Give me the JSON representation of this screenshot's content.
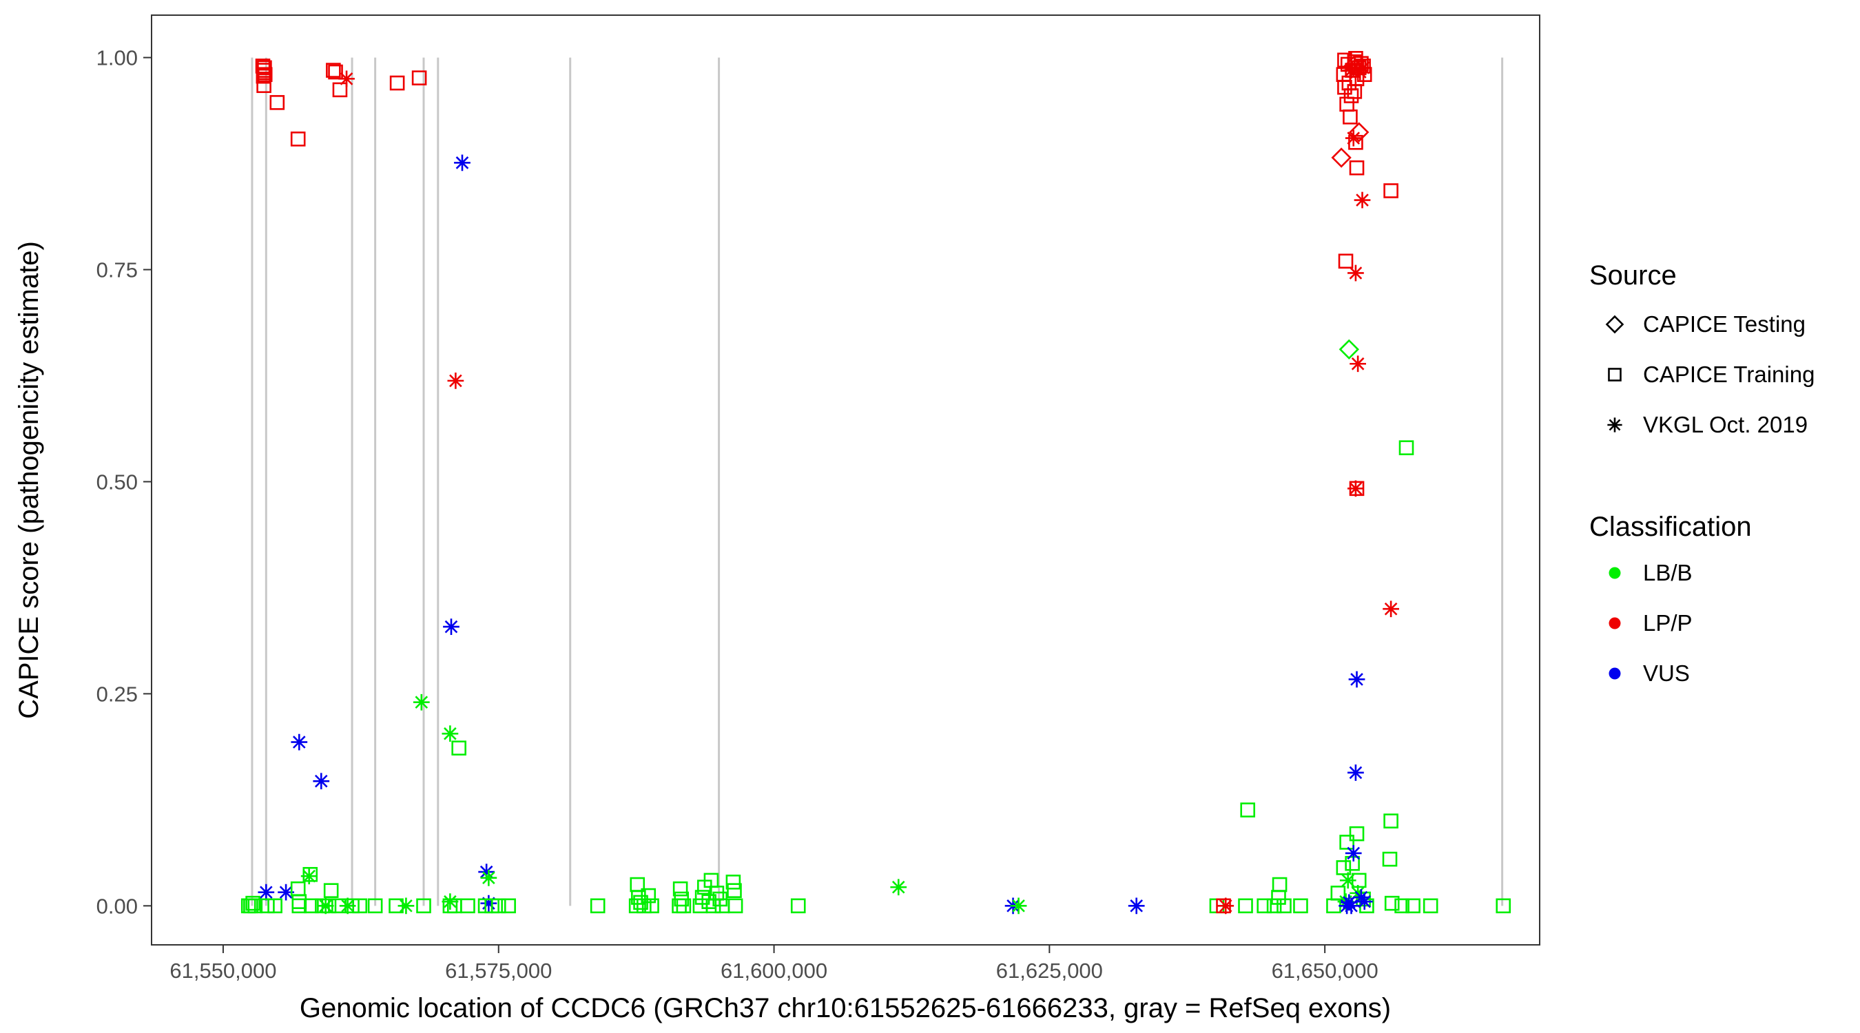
{
  "chart_data": {
    "type": "scatter",
    "title": "",
    "xlabel": "Genomic location of CCDC6 (GRCh37 chr10:61552625-61666233, gray = RefSeq exons)",
    "ylabel": "CAPICE score (pathogenicity estimate)",
    "xlim": [
      61543500,
      61669500
    ],
    "ylim": [
      -0.046,
      1.05
    ],
    "x_ticks": [
      {
        "value": 61550000,
        "label": "61,550,000"
      },
      {
        "value": 61575000,
        "label": "61,575,000"
      },
      {
        "value": 61600000,
        "label": "61,600,000"
      },
      {
        "value": 61625000,
        "label": "61,625,000"
      },
      {
        "value": 61650000,
        "label": "61,650,000"
      }
    ],
    "y_ticks": [
      {
        "value": 0,
        "label": "0.00"
      },
      {
        "value": 0.25,
        "label": "0.25"
      },
      {
        "value": 0.5,
        "label": "0.50"
      },
      {
        "value": 0.75,
        "label": "0.75"
      },
      {
        "value": 1.0,
        "label": "1.00"
      }
    ],
    "grid": false,
    "exons": [
      61552625,
      61553900,
      61561700,
      61563800,
      61568200,
      61569500,
      61581500,
      61595000,
      61666100
    ],
    "legend_placement": "right",
    "legend": {
      "source_title": "Source",
      "source_items": [
        {
          "shape": "diamond",
          "label": "CAPICE Testing"
        },
        {
          "shape": "square",
          "label": "CAPICE Training"
        },
        {
          "shape": "asterisk",
          "label": "VKGL Oct. 2019"
        }
      ],
      "class_title": "Classification",
      "class_items": [
        {
          "key": "LB/B",
          "label": "LB/B",
          "color": "#00ee00"
        },
        {
          "key": "LP/P",
          "label": "LP/P",
          "color": "#ee0000"
        },
        {
          "key": "VUS",
          "label": "VUS",
          "color": "#0000ee"
        }
      ]
    },
    "points": [
      {
        "x": 61553600,
        "y": 0.99,
        "s": "square",
        "c": "LP/P"
      },
      {
        "x": 61553700,
        "y": 0.985,
        "s": "square",
        "c": "LP/P"
      },
      {
        "x": 61553800,
        "y": 0.98,
        "s": "square",
        "c": "LP/P"
      },
      {
        "x": 61553650,
        "y": 0.978,
        "s": "square",
        "c": "LP/P"
      },
      {
        "x": 61553750,
        "y": 0.988,
        "s": "square",
        "c": "LP/P"
      },
      {
        "x": 61553700,
        "y": 0.967,
        "s": "square",
        "c": "LP/P"
      },
      {
        "x": 61554900,
        "y": 0.947,
        "s": "square",
        "c": "LP/P"
      },
      {
        "x": 61556800,
        "y": 0.904,
        "s": "square",
        "c": "LP/P"
      },
      {
        "x": 61560000,
        "y": 0.985,
        "s": "square",
        "c": "LP/P"
      },
      {
        "x": 61560200,
        "y": 0.983,
        "s": "square",
        "c": "LP/P"
      },
      {
        "x": 61560600,
        "y": 0.962,
        "s": "square",
        "c": "LP/P"
      },
      {
        "x": 61561200,
        "y": 0.975,
        "s": "asterisk",
        "c": "LP/P"
      },
      {
        "x": 61565800,
        "y": 0.97,
        "s": "square",
        "c": "LP/P"
      },
      {
        "x": 61567800,
        "y": 0.976,
        "s": "square",
        "c": "LP/P"
      },
      {
        "x": 61571700,
        "y": 0.876,
        "s": "asterisk",
        "c": "VUS"
      },
      {
        "x": 61571100,
        "y": 0.619,
        "s": "asterisk",
        "c": "LP/P"
      },
      {
        "x": 61570700,
        "y": 0.329,
        "s": "asterisk",
        "c": "VUS"
      },
      {
        "x": 61568000,
        "y": 0.24,
        "s": "asterisk",
        "c": "LB/B"
      },
      {
        "x": 61570600,
        "y": 0.203,
        "s": "asterisk",
        "c": "LB/B"
      },
      {
        "x": 61571400,
        "y": 0.186,
        "s": "square",
        "c": "LB/B"
      },
      {
        "x": 61556900,
        "y": 0.193,
        "s": "asterisk",
        "c": "VUS"
      },
      {
        "x": 61558900,
        "y": 0.147,
        "s": "asterisk",
        "c": "VUS"
      },
      {
        "x": 61573900,
        "y": 0.04,
        "s": "asterisk",
        "c": "VUS"
      },
      {
        "x": 61574100,
        "y": 0.033,
        "s": "asterisk",
        "c": "LB/B"
      },
      {
        "x": 61574100,
        "y": 0.003,
        "s": "asterisk",
        "c": "VUS"
      },
      {
        "x": 61553900,
        "y": 0.016,
        "s": "asterisk",
        "c": "VUS"
      },
      {
        "x": 61555700,
        "y": 0.016,
        "s": "asterisk",
        "c": "VUS"
      },
      {
        "x": 61557800,
        "y": 0.035,
        "s": "asterisk",
        "c": "LB/B"
      },
      {
        "x": 61557900,
        "y": 0.037,
        "s": "square",
        "c": "LB/B"
      },
      {
        "x": 61556800,
        "y": 0.02,
        "s": "square",
        "c": "LB/B"
      },
      {
        "x": 61559800,
        "y": 0.018,
        "s": "square",
        "c": "LB/B"
      },
      {
        "x": 61556900,
        "y": 0.005,
        "s": "square",
        "c": "LB/B"
      },
      {
        "x": 61570600,
        "y": 0.005,
        "s": "asterisk",
        "c": "LB/B"
      },
      {
        "x": 61552300,
        "y": 0.0,
        "s": "square",
        "c": "LB/B"
      },
      {
        "x": 61552500,
        "y": 0.0,
        "s": "square",
        "c": "LB/B"
      },
      {
        "x": 61552700,
        "y": 0.003,
        "s": "square",
        "c": "LB/B"
      },
      {
        "x": 61552900,
        "y": 0.0,
        "s": "square",
        "c": "LB/B"
      },
      {
        "x": 61554000,
        "y": 0.0,
        "s": "square",
        "c": "LB/B"
      },
      {
        "x": 61554700,
        "y": 0.0,
        "s": "square",
        "c": "LB/B"
      },
      {
        "x": 61556900,
        "y": 0.0,
        "s": "square",
        "c": "LB/B"
      },
      {
        "x": 61558000,
        "y": 0.0,
        "s": "square",
        "c": "LB/B"
      },
      {
        "x": 61559000,
        "y": 0.0,
        "s": "square",
        "c": "LB/B"
      },
      {
        "x": 61559300,
        "y": 0.0,
        "s": "asterisk",
        "c": "LB/B"
      },
      {
        "x": 61559600,
        "y": 0.0,
        "s": "square",
        "c": "LB/B"
      },
      {
        "x": 61560500,
        "y": 0.0,
        "s": "square",
        "c": "LB/B"
      },
      {
        "x": 61561300,
        "y": 0.0,
        "s": "asterisk",
        "c": "LB/B"
      },
      {
        "x": 61561700,
        "y": 0.0,
        "s": "square",
        "c": "LB/B"
      },
      {
        "x": 61562400,
        "y": 0.0,
        "s": "square",
        "c": "LB/B"
      },
      {
        "x": 61563800,
        "y": 0.0,
        "s": "square",
        "c": "LB/B"
      },
      {
        "x": 61565700,
        "y": 0.0,
        "s": "square",
        "c": "LB/B"
      },
      {
        "x": 61566600,
        "y": 0.0,
        "s": "asterisk",
        "c": "LB/B"
      },
      {
        "x": 61568200,
        "y": 0.0,
        "s": "square",
        "c": "LB/B"
      },
      {
        "x": 61570600,
        "y": 0.0,
        "s": "square",
        "c": "LB/B"
      },
      {
        "x": 61571000,
        "y": 0.0,
        "s": "square",
        "c": "LB/B"
      },
      {
        "x": 61572200,
        "y": 0.0,
        "s": "square",
        "c": "LB/B"
      },
      {
        "x": 61573800,
        "y": 0.0,
        "s": "square",
        "c": "LB/B"
      },
      {
        "x": 61574400,
        "y": 0.0,
        "s": "square",
        "c": "LB/B"
      },
      {
        "x": 61575000,
        "y": 0.0,
        "s": "square",
        "c": "LB/B"
      },
      {
        "x": 61575900,
        "y": 0.0,
        "s": "square",
        "c": "LB/B"
      },
      {
        "x": 61584000,
        "y": 0.0,
        "s": "square",
        "c": "LB/B"
      },
      {
        "x": 61587600,
        "y": 0.025,
        "s": "square",
        "c": "LB/B"
      },
      {
        "x": 61587700,
        "y": 0.01,
        "s": "square",
        "c": "LB/B"
      },
      {
        "x": 61587500,
        "y": 0.0,
        "s": "square",
        "c": "LB/B"
      },
      {
        "x": 61587900,
        "y": 0.004,
        "s": "square",
        "c": "LB/B"
      },
      {
        "x": 61588200,
        "y": 0.0,
        "s": "square",
        "c": "LB/B"
      },
      {
        "x": 61588600,
        "y": 0.012,
        "s": "square",
        "c": "LB/B"
      },
      {
        "x": 61588900,
        "y": 0.0,
        "s": "square",
        "c": "LB/B"
      },
      {
        "x": 61591500,
        "y": 0.02,
        "s": "square",
        "c": "LB/B"
      },
      {
        "x": 61591600,
        "y": 0.008,
        "s": "square",
        "c": "LB/B"
      },
      {
        "x": 61591400,
        "y": 0.0,
        "s": "square",
        "c": "LB/B"
      },
      {
        "x": 61591800,
        "y": 0.0,
        "s": "square",
        "c": "LB/B"
      },
      {
        "x": 61593500,
        "y": 0.01,
        "s": "square",
        "c": "LB/B"
      },
      {
        "x": 61593700,
        "y": 0.022,
        "s": "square",
        "c": "LB/B"
      },
      {
        "x": 61593300,
        "y": 0.0,
        "s": "square",
        "c": "LB/B"
      },
      {
        "x": 61594300,
        "y": 0.03,
        "s": "square",
        "c": "LB/B"
      },
      {
        "x": 61594100,
        "y": 0.005,
        "s": "square",
        "c": "LB/B"
      },
      {
        "x": 61594500,
        "y": 0.0,
        "s": "square",
        "c": "LB/B"
      },
      {
        "x": 61594800,
        "y": 0.015,
        "s": "square",
        "c": "LB/B"
      },
      {
        "x": 61595100,
        "y": 0.008,
        "s": "square",
        "c": "LB/B"
      },
      {
        "x": 61595300,
        "y": 0.0,
        "s": "square",
        "c": "LB/B"
      },
      {
        "x": 61596300,
        "y": 0.028,
        "s": "square",
        "c": "LB/B"
      },
      {
        "x": 61596400,
        "y": 0.018,
        "s": "square",
        "c": "LB/B"
      },
      {
        "x": 61596500,
        "y": 0.0,
        "s": "square",
        "c": "LB/B"
      },
      {
        "x": 61602200,
        "y": 0.0,
        "s": "square",
        "c": "LB/B"
      },
      {
        "x": 61611300,
        "y": 0.022,
        "s": "asterisk",
        "c": "LB/B"
      },
      {
        "x": 61621700,
        "y": 0.0,
        "s": "asterisk",
        "c": "VUS"
      },
      {
        "x": 61622200,
        "y": 0.0,
        "s": "asterisk",
        "c": "LB/B"
      },
      {
        "x": 61632900,
        "y": 0.0,
        "s": "asterisk",
        "c": "VUS"
      },
      {
        "x": 61640200,
        "y": 0.0,
        "s": "square",
        "c": "LB/B"
      },
      {
        "x": 61640800,
        "y": 0.0,
        "s": "square",
        "c": "LP/P"
      },
      {
        "x": 61641000,
        "y": 0.0,
        "s": "asterisk",
        "c": "LP/P"
      },
      {
        "x": 61642800,
        "y": 0.0,
        "s": "square",
        "c": "LB/B"
      },
      {
        "x": 61644500,
        "y": 0.0,
        "s": "square",
        "c": "LB/B"
      },
      {
        "x": 61643000,
        "y": 0.113,
        "s": "square",
        "c": "LB/B"
      },
      {
        "x": 61645900,
        "y": 0.025,
        "s": "square",
        "c": "LB/B"
      },
      {
        "x": 61645800,
        "y": 0.01,
        "s": "square",
        "c": "LB/B"
      },
      {
        "x": 61645400,
        "y": 0.0,
        "s": "square",
        "c": "LB/B"
      },
      {
        "x": 61646300,
        "y": 0.0,
        "s": "square",
        "c": "LB/B"
      },
      {
        "x": 61647800,
        "y": 0.0,
        "s": "square",
        "c": "LB/B"
      },
      {
        "x": 61650800,
        "y": 0.0,
        "s": "square",
        "c": "LB/B"
      },
      {
        "x": 61651200,
        "y": 0.015,
        "s": "square",
        "c": "LB/B"
      },
      {
        "x": 61651700,
        "y": 0.045,
        "s": "square",
        "c": "LB/B"
      },
      {
        "x": 61652000,
        "y": 0.075,
        "s": "square",
        "c": "LB/B"
      },
      {
        "x": 61652500,
        "y": 0.05,
        "s": "square",
        "c": "LB/B"
      },
      {
        "x": 61652900,
        "y": 0.085,
        "s": "square",
        "c": "LB/B"
      },
      {
        "x": 61653100,
        "y": 0.03,
        "s": "square",
        "c": "LB/B"
      },
      {
        "x": 61652100,
        "y": 0.03,
        "s": "asterisk",
        "c": "LB/B"
      },
      {
        "x": 61651900,
        "y": 0.005,
        "s": "asterisk",
        "c": "LB/B"
      },
      {
        "x": 61653000,
        "y": 0.015,
        "s": "asterisk",
        "c": "LB/B"
      },
      {
        "x": 61653500,
        "y": 0.008,
        "s": "square",
        "c": "LB/B"
      },
      {
        "x": 61653800,
        "y": 0.0,
        "s": "square",
        "c": "LB/B"
      },
      {
        "x": 61656000,
        "y": 0.1,
        "s": "square",
        "c": "LB/B"
      },
      {
        "x": 61655900,
        "y": 0.055,
        "s": "square",
        "c": "LB/B"
      },
      {
        "x": 61656100,
        "y": 0.003,
        "s": "square",
        "c": "LB/B"
      },
      {
        "x": 61657000,
        "y": 0.0,
        "s": "square",
        "c": "LB/B"
      },
      {
        "x": 61658000,
        "y": 0.0,
        "s": "square",
        "c": "LB/B"
      },
      {
        "x": 61659600,
        "y": 0.0,
        "s": "square",
        "c": "LB/B"
      },
      {
        "x": 61666200,
        "y": 0.0,
        "s": "square",
        "c": "LB/B"
      },
      {
        "x": 61657400,
        "y": 0.54,
        "s": "square",
        "c": "LB/B"
      },
      {
        "x": 61652200,
        "y": 0.656,
        "s": "diamond",
        "c": "LB/B"
      },
      {
        "x": 61652600,
        "y": 0.062,
        "s": "asterisk",
        "c": "VUS"
      },
      {
        "x": 61652200,
        "y": 0.004,
        "s": "asterisk",
        "c": "VUS"
      },
      {
        "x": 61652000,
        "y": 0.0,
        "s": "asterisk",
        "c": "VUS"
      },
      {
        "x": 61652400,
        "y": 0.0,
        "s": "asterisk",
        "c": "VUS"
      },
      {
        "x": 61653300,
        "y": 0.01,
        "s": "asterisk",
        "c": "VUS"
      },
      {
        "x": 61653600,
        "y": 0.005,
        "s": "asterisk",
        "c": "VUS"
      },
      {
        "x": 61652900,
        "y": 0.267,
        "s": "asterisk",
        "c": "VUS"
      },
      {
        "x": 61652800,
        "y": 0.157,
        "s": "asterisk",
        "c": "VUS"
      },
      {
        "x": 61656000,
        "y": 0.35,
        "s": "asterisk",
        "c": "LP/P"
      },
      {
        "x": 61652800,
        "y": 0.492,
        "s": "asterisk",
        "c": "LP/P"
      },
      {
        "x": 61652900,
        "y": 0.492,
        "s": "square",
        "c": "LP/P"
      },
      {
        "x": 61653000,
        "y": 0.639,
        "s": "asterisk",
        "c": "LP/P"
      },
      {
        "x": 61652800,
        "y": 0.746,
        "s": "asterisk",
        "c": "LP/P"
      },
      {
        "x": 61651900,
        "y": 0.76,
        "s": "square",
        "c": "LP/P"
      },
      {
        "x": 61653400,
        "y": 0.832,
        "s": "asterisk",
        "c": "LP/P"
      },
      {
        "x": 61656000,
        "y": 0.843,
        "s": "square",
        "c": "LP/P"
      },
      {
        "x": 61652900,
        "y": 0.87,
        "s": "square",
        "c": "LP/P"
      },
      {
        "x": 61651500,
        "y": 0.882,
        "s": "diamond",
        "c": "LP/P"
      },
      {
        "x": 61652600,
        "y": 0.905,
        "s": "asterisk",
        "c": "LP/P"
      },
      {
        "x": 61652800,
        "y": 0.9,
        "s": "square",
        "c": "LP/P"
      },
      {
        "x": 61653100,
        "y": 0.912,
        "s": "diamond",
        "c": "LP/P"
      },
      {
        "x": 61652300,
        "y": 0.93,
        "s": "square",
        "c": "LP/P"
      },
      {
        "x": 61652000,
        "y": 0.945,
        "s": "square",
        "c": "LP/P"
      },
      {
        "x": 61652400,
        "y": 0.955,
        "s": "square",
        "c": "LP/P"
      },
      {
        "x": 61652700,
        "y": 0.96,
        "s": "square",
        "c": "LP/P"
      },
      {
        "x": 61651800,
        "y": 0.965,
        "s": "square",
        "c": "LP/P"
      },
      {
        "x": 61652200,
        "y": 0.97,
        "s": "square",
        "c": "LP/P"
      },
      {
        "x": 61652900,
        "y": 0.975,
        "s": "square",
        "c": "LP/P"
      },
      {
        "x": 61651700,
        "y": 0.98,
        "s": "square",
        "c": "LP/P"
      },
      {
        "x": 61652500,
        "y": 0.985,
        "s": "square",
        "c": "LP/P"
      },
      {
        "x": 61653100,
        "y": 0.988,
        "s": "square",
        "c": "LP/P"
      },
      {
        "x": 61653500,
        "y": 0.99,
        "s": "square",
        "c": "LP/P"
      },
      {
        "x": 61652100,
        "y": 0.992,
        "s": "square",
        "c": "LP/P"
      },
      {
        "x": 61652700,
        "y": 0.995,
        "s": "square",
        "c": "LP/P"
      },
      {
        "x": 61651800,
        "y": 0.997,
        "s": "square",
        "c": "LP/P"
      },
      {
        "x": 61652800,
        "y": 0.999,
        "s": "square",
        "c": "LP/P"
      },
      {
        "x": 61653300,
        "y": 0.993,
        "s": "square",
        "c": "LP/P"
      },
      {
        "x": 61653600,
        "y": 0.98,
        "s": "square",
        "c": "LP/P"
      },
      {
        "x": 61652400,
        "y": 0.985,
        "s": "asterisk",
        "c": "LP/P"
      },
      {
        "x": 61653200,
        "y": 0.983,
        "s": "asterisk",
        "c": "LP/P"
      },
      {
        "x": 61653500,
        "y": 0.988,
        "s": "asterisk",
        "c": "LP/P"
      },
      {
        "x": 61652600,
        "y": 0.99,
        "s": "diamond",
        "c": "LP/P"
      }
    ]
  }
}
